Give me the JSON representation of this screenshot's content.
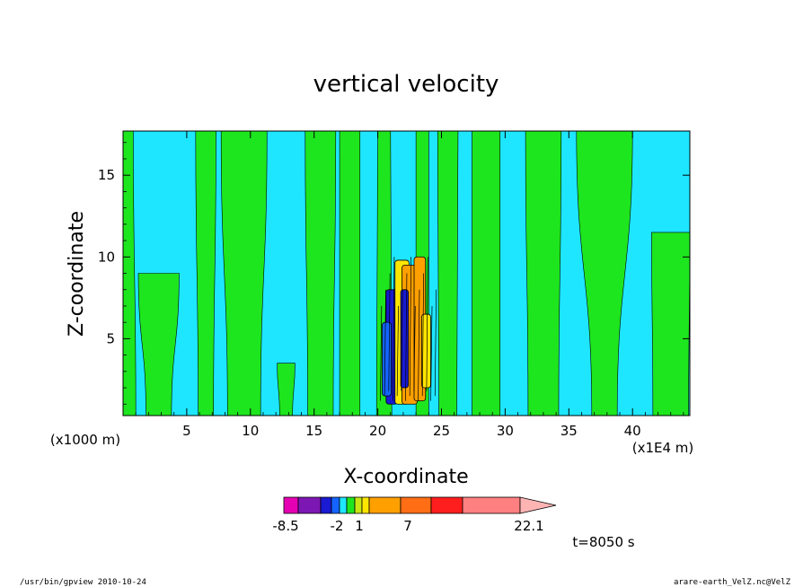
{
  "chart_data": {
    "type": "contour",
    "title": "vertical velocity",
    "xlabel": "X-coordinate",
    "ylabel": "Z-coordinate",
    "x_unit": "(x1E4 m)",
    "y_unit": "(x1000 m)",
    "xlim": [
      0,
      44.5
    ],
    "ylim": [
      0.3,
      17.7
    ],
    "x_ticks": [
      5,
      10,
      15,
      20,
      25,
      30,
      35,
      40
    ],
    "y_ticks": [
      5,
      10,
      15
    ],
    "colorbar": {
      "labels": [
        "-8.5",
        "-2",
        "1",
        "7",
        "22.1"
      ],
      "colors": [
        "#e600b4",
        "#7d17b4",
        "#1a1ad2",
        "#1464ff",
        "#1ee6ff",
        "#1ee61e",
        "#c8e614",
        "#ffe600",
        "#ffa000",
        "#ff6e14",
        "#ff1e1e",
        "#ff8080",
        "#ffb4b4"
      ],
      "extends_max": true
    },
    "field_colors": {
      "background": "#1ee6ff",
      "positive_band": "#1ee61e",
      "weak": "#ffe600",
      "updraft": "#ffa000",
      "strong_updraft": "#ff6e14",
      "downdraft": "#1464ff",
      "strong_downdraft": "#1a1ad2",
      "contour_line": "#000000"
    },
    "time_label": "t=8050 s"
  },
  "footer": {
    "left": "/usr/bin/gpview   2010-10-24",
    "right": "arare-earth_VelZ.nc@VelZ"
  }
}
